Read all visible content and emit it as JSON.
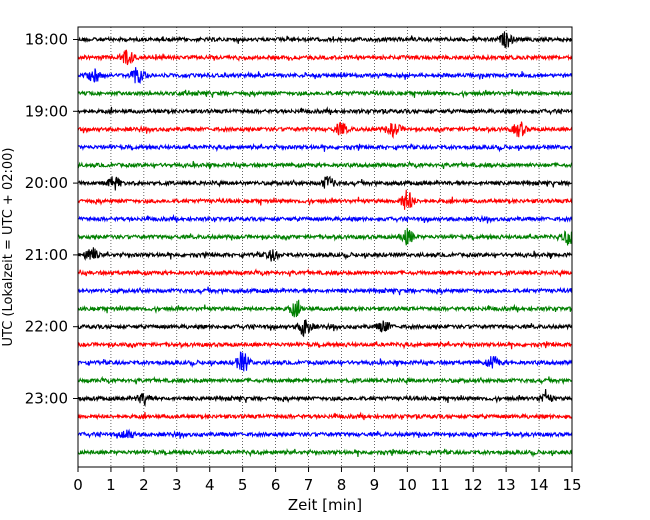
{
  "chart_data": {
    "type": "line",
    "title": "",
    "xlabel": "Zeit  [min]",
    "ylabel": "UTC (Lokalzeit = UTC + 02:00)",
    "xlim": [
      0,
      15
    ],
    "x_ticks": [
      "0",
      "1",
      "2",
      "3",
      "4",
      "5",
      "6",
      "7",
      "8",
      "9",
      "10",
      "11",
      "12",
      "13",
      "14",
      "15"
    ],
    "y_ticks": [
      "18:00",
      "19:00",
      "20:00",
      "21:00",
      "22:00",
      "23:00"
    ],
    "grid": "vertical dotted at each minute",
    "trace_interval_minutes": 15,
    "first_trace_time": "18:00",
    "trace_count": 24,
    "colors_cycle": [
      "#000000",
      "#ff0000",
      "#0000ff",
      "#008000"
    ],
    "events": [
      {
        "trace": 0,
        "minute": 13.0,
        "amp": 2.2
      },
      {
        "trace": 1,
        "minute": 1.5,
        "amp": 2.6
      },
      {
        "trace": 2,
        "minute": 0.5,
        "amp": 2.0
      },
      {
        "trace": 2,
        "minute": 1.8,
        "amp": 2.2
      },
      {
        "trace": 5,
        "minute": 8.0,
        "amp": 1.8
      },
      {
        "trace": 5,
        "minute": 9.6,
        "amp": 2.0
      },
      {
        "trace": 5,
        "minute": 13.4,
        "amp": 2.2
      },
      {
        "trace": 8,
        "minute": 1.1,
        "amp": 1.9
      },
      {
        "trace": 8,
        "minute": 7.6,
        "amp": 2.0
      },
      {
        "trace": 9,
        "minute": 10.0,
        "amp": 3.2
      },
      {
        "trace": 11,
        "minute": 10.0,
        "amp": 2.3
      },
      {
        "trace": 11,
        "minute": 14.9,
        "amp": 2.2
      },
      {
        "trace": 12,
        "minute": 0.4,
        "amp": 2.4
      },
      {
        "trace": 12,
        "minute": 5.9,
        "amp": 1.6
      },
      {
        "trace": 15,
        "minute": 6.6,
        "amp": 2.2
      },
      {
        "trace": 16,
        "minute": 6.9,
        "amp": 3.2
      },
      {
        "trace": 16,
        "minute": 9.3,
        "amp": 1.8
      },
      {
        "trace": 18,
        "minute": 5.0,
        "amp": 3.2
      },
      {
        "trace": 18,
        "minute": 12.6,
        "amp": 1.8
      },
      {
        "trace": 20,
        "minute": 2.0,
        "amp": 1.6
      },
      {
        "trace": 20,
        "minute": 14.2,
        "amp": 1.7
      },
      {
        "trace": 22,
        "minute": 1.5,
        "amp": 1.5
      }
    ]
  }
}
